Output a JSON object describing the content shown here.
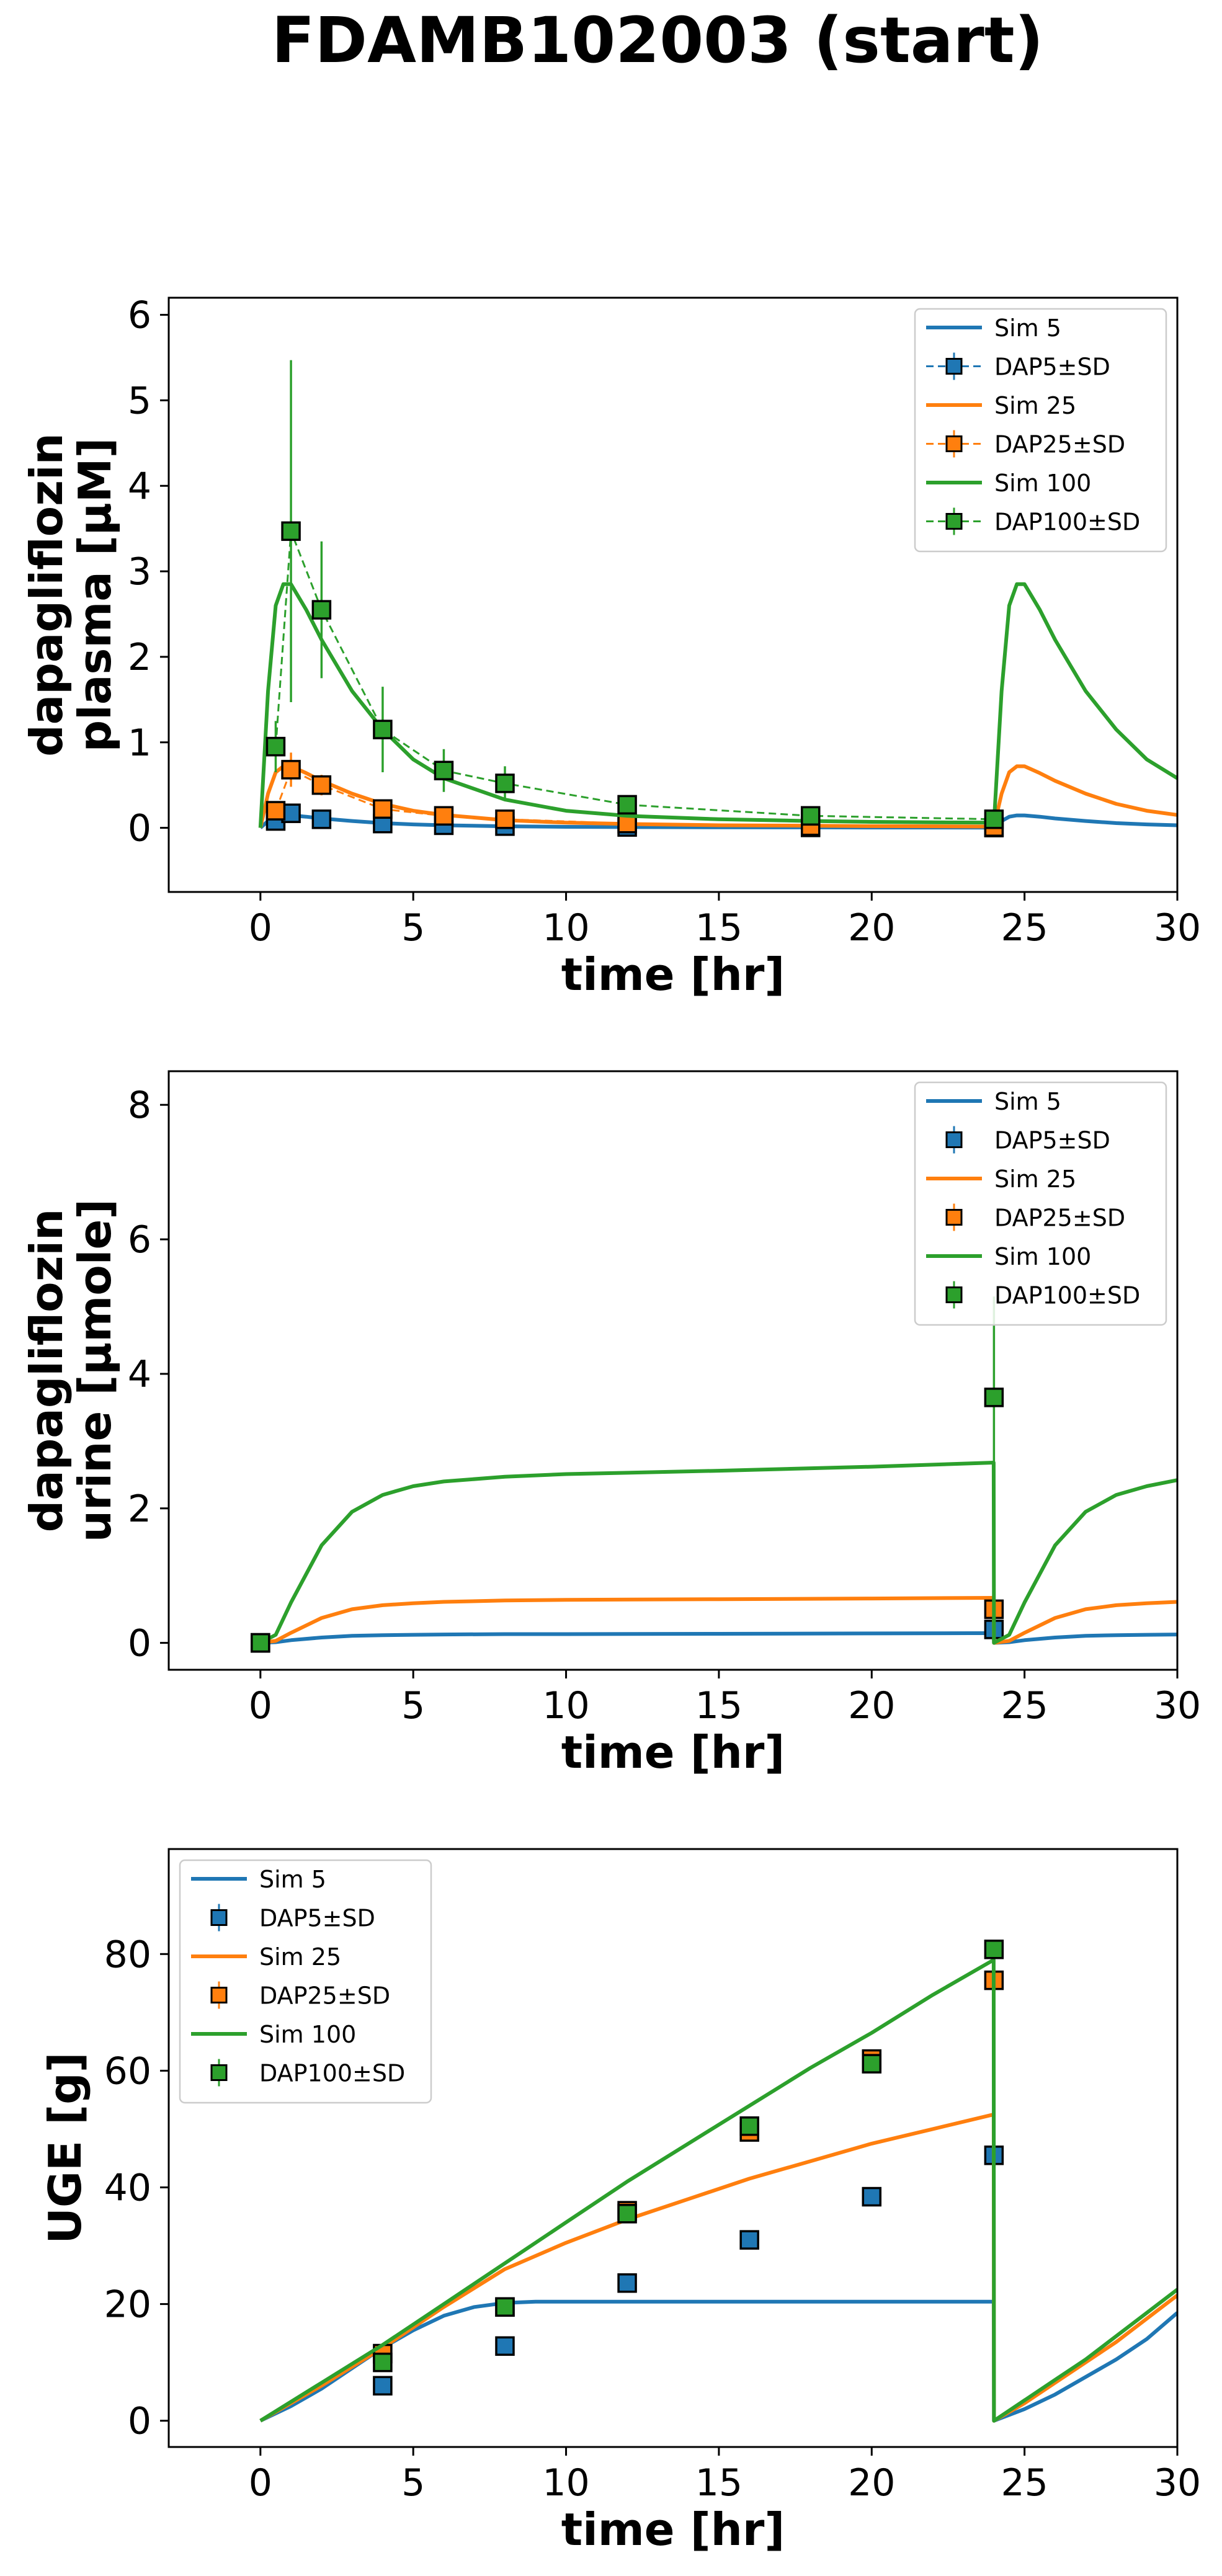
{
  "figure_title": "FDAMB102003 (start)",
  "colors": {
    "s5": "#1f77b4",
    "s25": "#ff7f0e",
    "s100": "#2ca02c"
  },
  "chart_data": [
    {
      "type": "line",
      "name": "plasma",
      "title": "",
      "ylabel_lines": [
        "dapagliflozin",
        "plasma [µM]"
      ],
      "xlabel": "time [hr]",
      "xlim": [
        -3,
        30
      ],
      "ylim": [
        -0.75,
        6.2
      ],
      "xticks": [
        "0",
        "5",
        "10",
        "15",
        "20",
        "25",
        "30"
      ],
      "yticks": [
        "0",
        "1",
        "2",
        "3",
        "4",
        "5",
        "6"
      ],
      "legend_position": "top-right",
      "legend": [
        "Sim 5",
        "DAP5±SD",
        "Sim 25",
        "DAP25±SD",
        "Sim 100",
        "DAP100±SD"
      ],
      "series": [
        {
          "name": "Sim 5",
          "kind": "line",
          "color": "#1f77b4",
          "x": [
            0,
            0.25,
            0.5,
            0.75,
            1,
            1.5,
            2,
            3,
            4,
            5,
            6,
            8,
            10,
            12,
            15,
            18,
            20,
            22,
            24,
            24.25,
            24.5,
            24.75,
            25,
            25.5,
            26,
            27,
            28,
            29,
            30
          ],
          "y": [
            0,
            0.08,
            0.13,
            0.145,
            0.145,
            0.13,
            0.11,
            0.08,
            0.055,
            0.04,
            0.03,
            0.018,
            0.012,
            0.009,
            0.006,
            0.005,
            0.004,
            0.004,
            0.003,
            0.08,
            0.13,
            0.145,
            0.145,
            0.13,
            0.11,
            0.08,
            0.055,
            0.04,
            0.03
          ]
        },
        {
          "name": "DAP5±SD",
          "kind": "points",
          "dashed": true,
          "color": "#1f77b4",
          "x": [
            0.5,
            1,
            2,
            4,
            6,
            8,
            12,
            18,
            24
          ],
          "y": [
            0.08,
            0.17,
            0.1,
            0.05,
            0.03,
            0.02,
            0.01,
            0.005,
            0.003
          ],
          "sd": [
            0.03,
            0.06,
            0.04,
            0.02,
            0.01,
            0.01,
            0.005,
            0.003,
            0.002
          ]
        },
        {
          "name": "Sim 25",
          "kind": "line",
          "color": "#ff7f0e",
          "x": [
            0,
            0.25,
            0.5,
            0.75,
            1,
            1.5,
            2,
            3,
            4,
            5,
            6,
            8,
            10,
            12,
            15,
            18,
            20,
            22,
            24,
            24.25,
            24.5,
            24.75,
            25,
            25.5,
            26,
            27,
            28,
            29,
            30
          ],
          "y": [
            0,
            0.4,
            0.65,
            0.72,
            0.72,
            0.64,
            0.55,
            0.4,
            0.28,
            0.2,
            0.15,
            0.09,
            0.06,
            0.045,
            0.03,
            0.025,
            0.02,
            0.018,
            0.015,
            0.4,
            0.65,
            0.72,
            0.72,
            0.64,
            0.55,
            0.4,
            0.28,
            0.2,
            0.15
          ]
        },
        {
          "name": "DAP25±SD",
          "kind": "points",
          "dashed": true,
          "color": "#ff7f0e",
          "x": [
            0.5,
            1,
            2,
            4,
            6,
            8,
            12,
            18,
            24
          ],
          "y": [
            0.2,
            0.68,
            0.5,
            0.22,
            0.14,
            0.1,
            0.05,
            0.02,
            0.01
          ],
          "sd": [
            0.1,
            0.2,
            0.12,
            0.07,
            0.04,
            0.03,
            0.02,
            0.01,
            0.005
          ]
        },
        {
          "name": "Sim 100",
          "kind": "line",
          "color": "#2ca02c",
          "x": [
            0,
            0.25,
            0.5,
            0.75,
            1,
            1.5,
            2,
            3,
            4,
            5,
            6,
            8,
            10,
            12,
            15,
            18,
            20,
            22,
            24,
            24.25,
            24.5,
            24.75,
            25,
            25.5,
            26,
            27,
            28,
            29,
            30
          ],
          "y": [
            0,
            1.6,
            2.6,
            2.85,
            2.85,
            2.55,
            2.2,
            1.6,
            1.15,
            0.8,
            0.58,
            0.33,
            0.2,
            0.14,
            0.1,
            0.08,
            0.07,
            0.065,
            0.06,
            1.6,
            2.6,
            2.85,
            2.85,
            2.55,
            2.2,
            1.6,
            1.15,
            0.8,
            0.58
          ]
        },
        {
          "name": "DAP100±SD",
          "kind": "points",
          "dashed": true,
          "color": "#2ca02c",
          "x": [
            0.5,
            1,
            2,
            4,
            6,
            8,
            12,
            18,
            24
          ],
          "y": [
            0.95,
            3.47,
            2.55,
            1.15,
            0.67,
            0.52,
            0.27,
            0.14,
            0.1
          ],
          "sd": [
            0.3,
            2.0,
            0.8,
            0.5,
            0.25,
            0.2,
            0.1,
            0.05,
            0.05
          ]
        }
      ]
    },
    {
      "type": "line",
      "name": "urine",
      "title": "",
      "ylabel_lines": [
        "dapagliflozin",
        "urine [µmole]"
      ],
      "xlabel": "time [hr]",
      "xlim": [
        -3,
        30
      ],
      "ylim": [
        -0.4,
        8.5
      ],
      "xticks": [
        "0",
        "5",
        "10",
        "15",
        "20",
        "25",
        "30"
      ],
      "yticks": [
        "0",
        "2",
        "4",
        "6",
        "8"
      ],
      "legend_position": "top-right",
      "legend": [
        "Sim 5",
        "DAP5±SD",
        "Sim 25",
        "DAP25±SD",
        "Sim 100",
        "DAP100±SD"
      ],
      "series": [
        {
          "name": "Sim 5",
          "kind": "line",
          "color": "#1f77b4",
          "x": [
            0,
            0.5,
            1,
            2,
            3,
            4,
            5,
            6,
            8,
            10,
            15,
            20,
            23.99,
            24,
            24.5,
            25,
            26,
            27,
            28,
            29,
            30
          ],
          "y": [
            0,
            0.01,
            0.04,
            0.08,
            0.105,
            0.115,
            0.12,
            0.125,
            0.13,
            0.13,
            0.135,
            0.14,
            0.145,
            0,
            0.01,
            0.04,
            0.08,
            0.105,
            0.115,
            0.12,
            0.125
          ]
        },
        {
          "name": "DAP5±SD",
          "kind": "points",
          "dashed": false,
          "color": "#1f77b4",
          "x": [
            0,
            24
          ],
          "y": [
            0,
            0.2
          ],
          "sd": [
            0,
            0.05
          ]
        },
        {
          "name": "Sim 25",
          "kind": "line",
          "color": "#ff7f0e",
          "x": [
            0,
            0.5,
            1,
            2,
            3,
            4,
            5,
            6,
            8,
            10,
            15,
            20,
            23.99,
            24,
            24.5,
            25,
            26,
            27,
            28,
            29,
            30
          ],
          "y": [
            0,
            0.03,
            0.15,
            0.37,
            0.5,
            0.56,
            0.59,
            0.61,
            0.63,
            0.64,
            0.65,
            0.66,
            0.67,
            0,
            0.03,
            0.15,
            0.37,
            0.5,
            0.56,
            0.59,
            0.61
          ]
        },
        {
          "name": "DAP25±SD",
          "kind": "points",
          "dashed": false,
          "color": "#ff7f0e",
          "x": [
            0,
            24
          ],
          "y": [
            0,
            0.5
          ],
          "sd": [
            0,
            0.12
          ]
        },
        {
          "name": "Sim 100",
          "kind": "line",
          "color": "#2ca02c",
          "x": [
            0,
            0.5,
            1,
            2,
            3,
            4,
            5,
            6,
            8,
            10,
            15,
            20,
            23.99,
            24,
            24.5,
            25,
            26,
            27,
            28,
            29,
            30
          ],
          "y": [
            0,
            0.12,
            0.6,
            1.45,
            1.95,
            2.2,
            2.33,
            2.4,
            2.47,
            2.51,
            2.56,
            2.62,
            2.68,
            0,
            0.12,
            0.6,
            1.45,
            1.95,
            2.2,
            2.33,
            2.42
          ]
        },
        {
          "name": "DAP100±SD",
          "kind": "points",
          "dashed": false,
          "color": "#2ca02c",
          "x": [
            0,
            24
          ],
          "y": [
            0,
            3.65
          ],
          "sd": [
            0,
            1.5
          ]
        }
      ]
    },
    {
      "type": "line",
      "name": "uge",
      "title": "",
      "ylabel_lines": [
        "UGE [g]"
      ],
      "xlabel": "time [hr]",
      "xlim": [
        -3,
        30
      ],
      "ylim": [
        -4.5,
        98
      ],
      "xticks": [
        "0",
        "5",
        "10",
        "15",
        "20",
        "25",
        "30"
      ],
      "yticks": [
        "0",
        "20",
        "40",
        "60",
        "80"
      ],
      "legend_position": "top-left",
      "legend": [
        "Sim 5",
        "DAP5±SD",
        "Sim 25",
        "DAP25±SD",
        "Sim 100",
        "DAP100±SD"
      ],
      "series": [
        {
          "name": "Sim 5",
          "kind": "line",
          "color": "#1f77b4",
          "x": [
            0,
            1,
            2,
            3,
            4,
            5,
            6,
            7,
            8,
            9,
            10,
            15,
            20,
            23.99,
            24,
            25,
            26,
            27,
            28,
            29,
            30
          ],
          "y": [
            0,
            2.5,
            5.5,
            9,
            12.5,
            15.5,
            18,
            19.5,
            20.2,
            20.4,
            20.4,
            20.4,
            20.4,
            20.4,
            0,
            2,
            4.5,
            7.5,
            10.5,
            14,
            18.5
          ]
        },
        {
          "name": "DAP5±SD",
          "kind": "points",
          "dashed": false,
          "color": "#1f77b4",
          "x": [
            4,
            8,
            12,
            16,
            20,
            24
          ],
          "y": [
            6,
            12.8,
            23.6,
            31,
            38.4,
            45.5
          ],
          "sd": [
            1.5,
            1.5,
            1.5,
            1.5,
            1.5,
            1.5
          ]
        },
        {
          "name": "Sim 25",
          "kind": "line",
          "color": "#ff7f0e",
          "x": [
            0,
            2,
            4,
            6,
            8,
            10,
            12,
            14,
            16,
            18,
            20,
            22,
            23.99,
            24,
            25,
            26,
            27,
            28,
            29,
            30
          ],
          "y": [
            0,
            6,
            12.5,
            19.5,
            26,
            30.5,
            34.5,
            38,
            41.5,
            44.5,
            47.5,
            50,
            52.5,
            0,
            3,
            6.5,
            10,
            13.5,
            17.5,
            21.5
          ]
        },
        {
          "name": "DAP25±SD",
          "kind": "points",
          "dashed": false,
          "color": "#ff7f0e",
          "x": [
            4,
            8,
            12,
            16,
            20,
            24
          ],
          "y": [
            11.5,
            19.5,
            36,
            49.5,
            62,
            75.5
          ],
          "sd": [
            1.5,
            1.5,
            1.5,
            1.5,
            1.5,
            1.5
          ]
        },
        {
          "name": "Sim 100",
          "kind": "line",
          "color": "#2ca02c",
          "x": [
            0,
            2,
            4,
            6,
            8,
            10,
            12,
            14,
            16,
            18,
            20,
            22,
            23.99,
            24,
            25,
            26,
            27,
            28,
            29,
            30
          ],
          "y": [
            0,
            6.5,
            13,
            20,
            27,
            34,
            41,
            47.5,
            54,
            60.5,
            66.5,
            73,
            79,
            0,
            3.5,
            7,
            10.5,
            14.5,
            18.5,
            22.5
          ]
        },
        {
          "name": "DAP100±SD",
          "kind": "points",
          "dashed": false,
          "color": "#2ca02c",
          "x": [
            4,
            8,
            12,
            16,
            20,
            24
          ],
          "y": [
            10,
            19.5,
            35.5,
            50.5,
            61.2,
            80.8
          ],
          "sd": [
            1.5,
            1.5,
            1.5,
            1.5,
            1.5,
            1.5
          ]
        }
      ]
    }
  ]
}
